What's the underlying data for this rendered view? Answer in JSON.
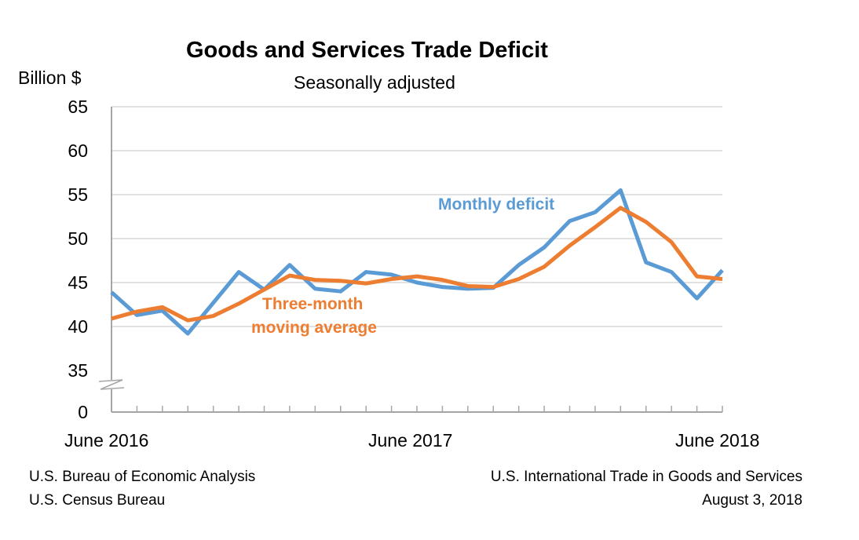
{
  "chart_data": {
    "type": "line",
    "title": "Goods and Services Trade Deficit",
    "subtitle": "Seasonally adjusted",
    "ylabel": "Billion $",
    "ylim": [
      35,
      65
    ],
    "y_axis_break": true,
    "yticks": [
      "0",
      "35",
      "40",
      "45",
      "50",
      "55",
      "60",
      "65"
    ],
    "xtick_labels": [
      "June 2016",
      "June 2017",
      "June 2018"
    ],
    "grid": "horizontal",
    "x": [
      "Jun 2016",
      "Jul 2016",
      "Aug 2016",
      "Sep 2016",
      "Oct 2016",
      "Nov 2016",
      "Dec 2016",
      "Jan 2017",
      "Feb 2017",
      "Mar 2017",
      "Apr 2017",
      "May 2017",
      "Jun 2017",
      "Jul 2017",
      "Aug 2017",
      "Sep 2017",
      "Oct 2017",
      "Nov 2017",
      "Dec 2017",
      "Jan 2018",
      "Feb 2018",
      "Mar 2018",
      "Apr 2018",
      "May 2018",
      "Jun 2018"
    ],
    "series": [
      {
        "name": "Monthly deficit",
        "color": "#5b9bd5",
        "values": [
          43.9,
          41.3,
          41.8,
          39.2,
          42.7,
          46.2,
          44.2,
          47.0,
          44.3,
          44.0,
          46.2,
          45.9,
          45.0,
          44.5,
          44.3,
          44.4,
          47.0,
          49.0,
          52.0,
          53.0,
          55.5,
          47.3,
          46.2,
          43.2,
          46.4
        ]
      },
      {
        "name": "Three-month moving average",
        "label_lines": [
          "Three-month",
          "moving average"
        ],
        "color": "#ed7d31",
        "values": [
          40.9,
          41.7,
          42.2,
          40.7,
          41.2,
          42.6,
          44.2,
          45.8,
          45.3,
          45.2,
          44.9,
          45.4,
          45.7,
          45.3,
          44.6,
          44.5,
          45.4,
          46.8,
          49.2,
          51.3,
          53.5,
          51.9,
          49.6,
          45.7,
          45.4
        ]
      }
    ]
  },
  "footer": {
    "left_1": "U.S. Bureau of Economic Analysis",
    "left_2": "U.S. Census Bureau",
    "right_1": "U.S. International Trade in Goods and Services",
    "right_2": "August 3, 2018"
  }
}
